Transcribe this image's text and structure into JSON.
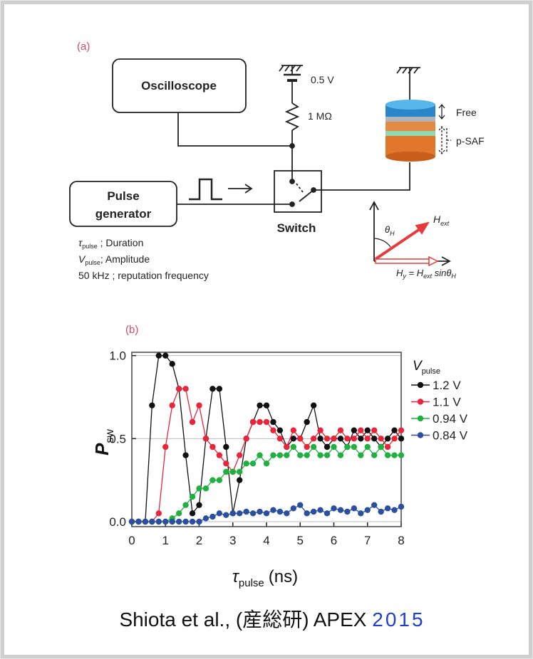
{
  "diagram": {
    "panel_label": "(a)",
    "oscilloscope": "Oscilloscope",
    "pulse_generator": [
      "Pulse",
      "generator"
    ],
    "switch": "Switch",
    "voltage": "0.5 V",
    "resistance": "1 MΩ",
    "layers": {
      "free": "Free",
      "psaf": "p-SAF"
    },
    "field": {
      "symbol": "H",
      "subscript": "ext",
      "angle": "θ",
      "angle_subscript": "H"
    },
    "hy_parts": [
      [
        "H",
        "y"
      ],
      [
        " = H",
        "ext"
      ],
      [
        " sinθ",
        "H"
      ]
    ],
    "notes": [
      [
        "τ",
        "pulse",
        " ; Duration"
      ],
      [
        "V",
        "pulse",
        "; Amplitude"
      ],
      [
        "50 kHz ; reputation frequency"
      ]
    ]
  },
  "chart_data": {
    "type": "line",
    "markers": true,
    "panel_label": "(b)",
    "x_label": {
      "symbol": "τ",
      "subscript": "pulse",
      "unit": "(ns)"
    },
    "y_label": {
      "symbol": "P",
      "subscript": "sw"
    },
    "legend_title": {
      "symbol": "V",
      "subscript": "pulse"
    },
    "legend": "right",
    "grid": true,
    "x": [
      0,
      0.2,
      0.4,
      0.6,
      0.8,
      1.0,
      1.2,
      1.4,
      1.6,
      1.8,
      2.0,
      2.2,
      2.4,
      2.6,
      2.8,
      3.0,
      3.2,
      3.4,
      3.6,
      3.8,
      4.0,
      4.2,
      4.4,
      4.6,
      4.8,
      5.0,
      5.2,
      5.4,
      5.6,
      5.8,
      6.0,
      6.2,
      6.4,
      6.6,
      6.8,
      7.0,
      7.2,
      7.4,
      7.6,
      7.8,
      8.0
    ],
    "series": [
      {
        "name": "1.2 V",
        "color": "#111111",
        "values": [
          0,
          0,
          0,
          0.7,
          1.0,
          1.0,
          0.95,
          0.8,
          0.4,
          0.05,
          0.1,
          0.5,
          0.8,
          0.8,
          0.45,
          0.05,
          0.25,
          0.5,
          0.6,
          0.7,
          0.7,
          0.6,
          0.55,
          0.45,
          0.5,
          0.5,
          0.6,
          0.7,
          0.5,
          0.45,
          0.5,
          0.5,
          0.45,
          0.55,
          0.5,
          0.55,
          0.5,
          0.45,
          0.5,
          0.55,
          0.5
        ]
      },
      {
        "name": "1.1 V",
        "color": "#e8253a",
        "values": [
          0,
          0,
          0,
          0,
          0.05,
          0.45,
          0.7,
          0.8,
          0.8,
          0.6,
          0.7,
          0.5,
          0.45,
          0.4,
          0.35,
          0.3,
          0.4,
          0.5,
          0.6,
          0.6,
          0.6,
          0.55,
          0.5,
          0.45,
          0.55,
          0.5,
          0.45,
          0.5,
          0.55,
          0.5,
          0.5,
          0.55,
          0.5,
          0.5,
          0.55,
          0.5,
          0.55,
          0.5,
          0.45,
          0.5,
          0.55
        ]
      },
      {
        "name": "0.94 V",
        "color": "#1fb040",
        "values": [
          0,
          0,
          0,
          0,
          0,
          0,
          0.02,
          0.05,
          0.1,
          0.15,
          0.2,
          0.2,
          0.25,
          0.25,
          0.3,
          0.3,
          0.3,
          0.35,
          0.35,
          0.4,
          0.35,
          0.4,
          0.4,
          0.4,
          0.45,
          0.4,
          0.4,
          0.45,
          0.4,
          0.4,
          0.45,
          0.4,
          0.45,
          0.45,
          0.4,
          0.45,
          0.4,
          0.45,
          0.4,
          0.4,
          0.4
        ]
      },
      {
        "name": "0.84 V",
        "color": "#2a4fa0",
        "values": [
          0,
          0,
          0,
          0,
          0,
          0,
          0,
          0,
          0,
          0,
          0,
          0.02,
          0.03,
          0.05,
          0.04,
          0.05,
          0.05,
          0.06,
          0.05,
          0.06,
          0.05,
          0.07,
          0.06,
          0.05,
          0.08,
          0.1,
          0.05,
          0.06,
          0.07,
          0.05,
          0.08,
          0.07,
          0.06,
          0.08,
          0.05,
          0.07,
          0.1,
          0.06,
          0.08,
          0.07,
          0.09
        ]
      }
    ],
    "xlim": [
      0,
      8
    ],
    "xticks": [
      0,
      1,
      2,
      3,
      4,
      5,
      6,
      7,
      8
    ],
    "ylim": [
      -0.03,
      1.02
    ],
    "yticks": [
      {
        "value": 0,
        "label": "0.0"
      },
      0.5,
      {
        "value": 1,
        "label": "1.0"
      }
    ]
  },
  "caption": {
    "text": "Shiota et al., (産総研) APEX ",
    "year": "2015"
  }
}
